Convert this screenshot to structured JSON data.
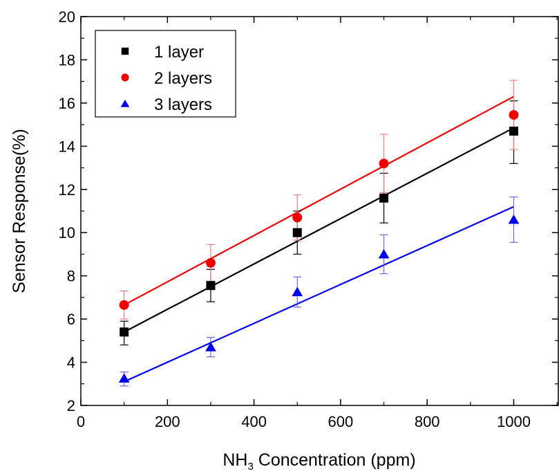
{
  "chart_data": {
    "type": "scatter",
    "xlabel_main": "NH",
    "xlabel_sub": "3",
    "xlabel_rest": " Concentration (ppm)",
    "ylabel": "Sensor Response(%)",
    "xlim": [
      0,
      1100
    ],
    "ylim": [
      2,
      20
    ],
    "xticks": [
      0,
      200,
      400,
      600,
      800,
      1000
    ],
    "yticks": [
      2,
      4,
      6,
      8,
      10,
      12,
      14,
      16,
      18,
      20
    ],
    "grid": false,
    "legend_position": "top-left",
    "x": [
      100,
      300,
      500,
      700,
      1000
    ],
    "series": [
      {
        "name": "1 layer",
        "marker": "square",
        "color": "#000000",
        "errcolor": "#000000",
        "values": [
          5.4,
          7.55,
          10.0,
          11.6,
          14.7
        ],
        "err_upper": [
          5.9,
          8.3,
          11.0,
          12.75,
          16.1
        ],
        "err_lower": [
          4.8,
          6.8,
          9.0,
          10.45,
          13.2
        ],
        "fit": [
          5.4,
          14.85
        ]
      },
      {
        "name": "2 layers",
        "marker": "circle",
        "color": "#ee0000",
        "errcolor": "#f08080",
        "values": [
          6.65,
          8.6,
          10.7,
          13.2,
          15.45
        ],
        "err_upper": [
          7.3,
          9.45,
          11.75,
          14.55,
          17.05
        ],
        "err_lower": [
          6.0,
          7.75,
          9.65,
          11.85,
          13.85
        ],
        "fit": [
          6.65,
          16.3
        ]
      },
      {
        "name": "3 layers",
        "marker": "triangle",
        "color": "#0000ee",
        "errcolor": "#6a6af0",
        "values": [
          3.25,
          4.7,
          7.25,
          9.0,
          10.6
        ],
        "err_upper": [
          3.55,
          5.15,
          7.95,
          9.9,
          11.65
        ],
        "err_lower": [
          2.9,
          4.25,
          6.55,
          8.1,
          9.55
        ],
        "fit": [
          3.1,
          11.2
        ]
      }
    ]
  }
}
